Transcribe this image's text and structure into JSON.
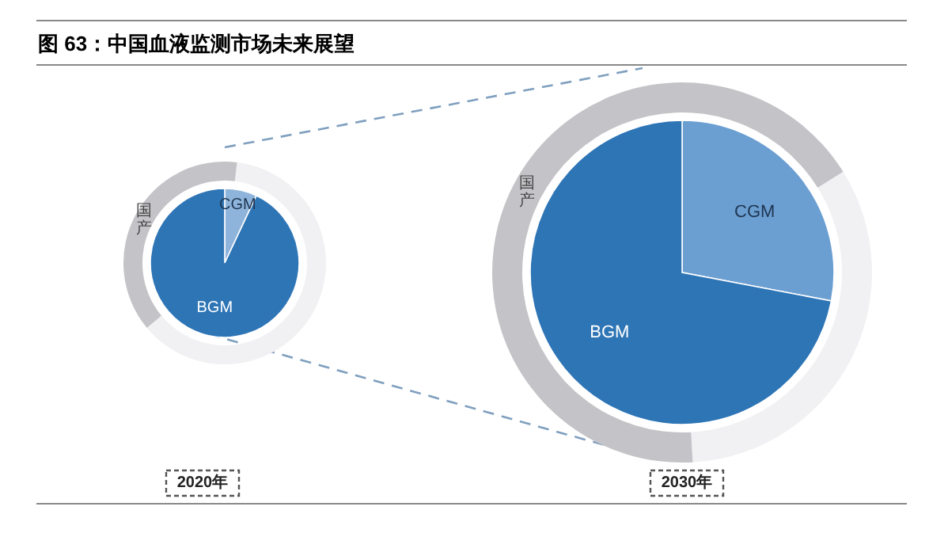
{
  "chart_data": [
    {
      "type": "pie",
      "title": "图 63：中国血液监测市场未来展望",
      "xlabel": "2020年",
      "categories": [
        "CGM",
        "BGM"
      ],
      "values": [
        7,
        93
      ],
      "colors": [
        "#8fb4dc",
        "#2e75b6"
      ]
    },
    {
      "type": "donut",
      "categories": [
        null,
        "国产"
      ],
      "values": [
        62,
        38
      ],
      "colors": [
        "#f1f1f3",
        "#c4c4c8"
      ]
    },
    {
      "type": "pie",
      "xlabel": "2030年",
      "categories": [
        "CGM",
        "BGM"
      ],
      "values": [
        28,
        72
      ],
      "colors": [
        "#6b9fd2",
        "#2e75b6"
      ]
    },
    {
      "type": "donut",
      "categories": [
        null,
        "国产"
      ],
      "values": [
        33,
        67
      ],
      "colors": [
        "#f1f1f3",
        "#c4c4c8"
      ]
    }
  ]
}
